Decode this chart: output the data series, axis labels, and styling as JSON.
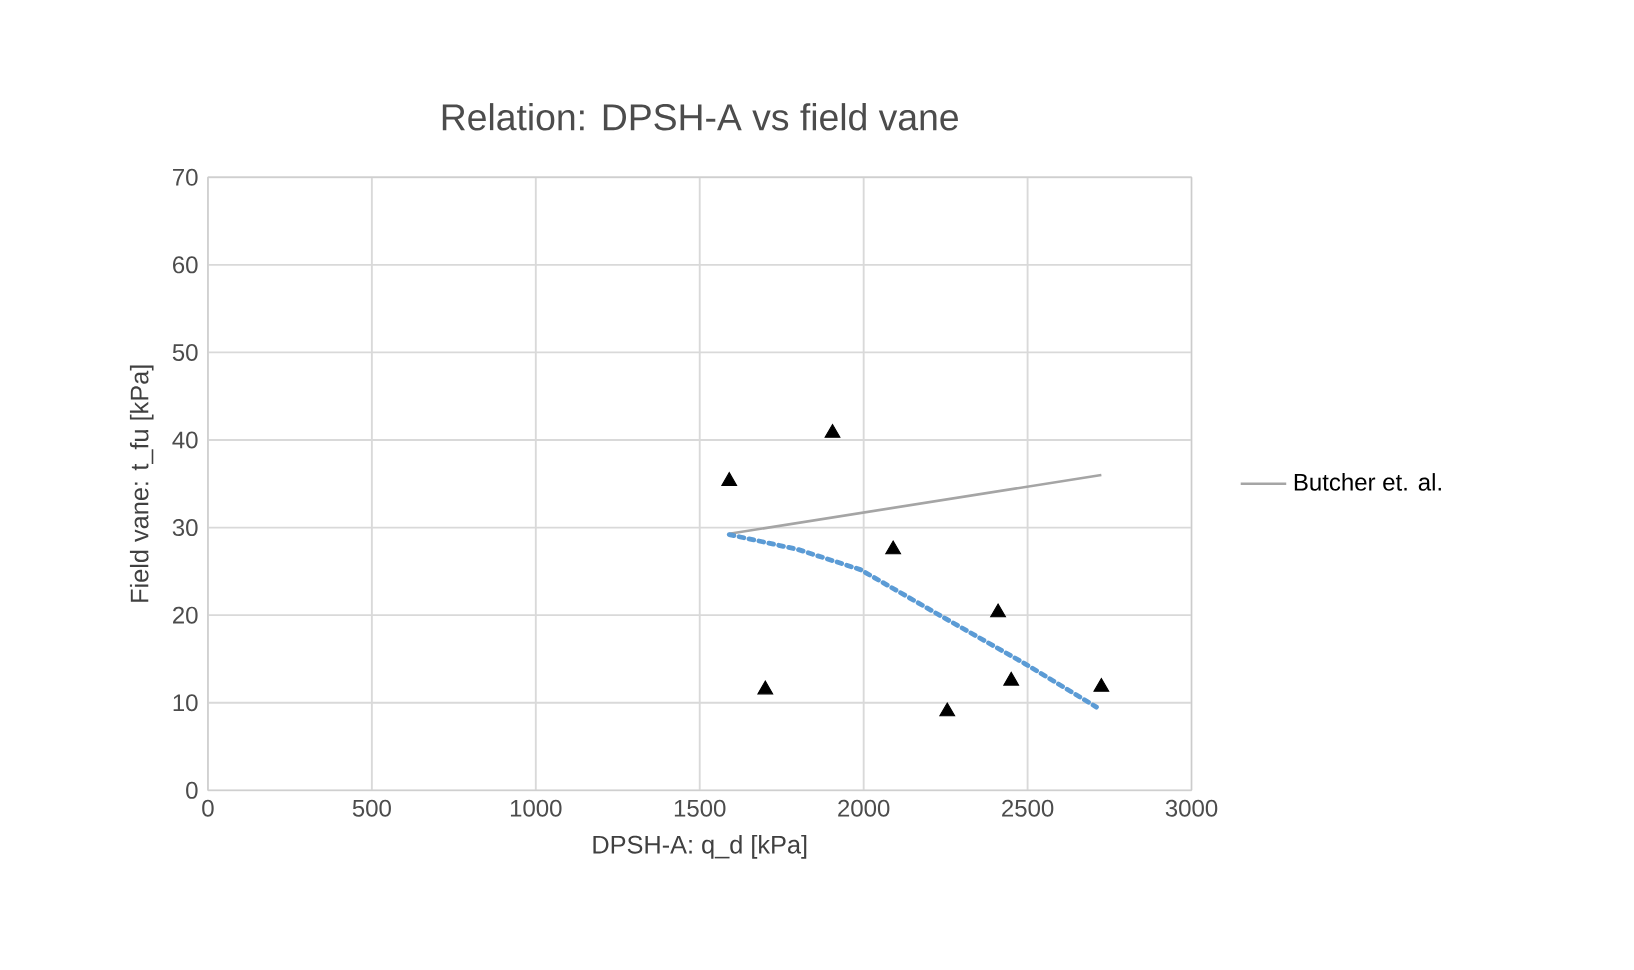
{
  "chart_data": {
    "type": "scatter",
    "title": "Relation: DPSH-A vs field vane",
    "xlabel": "DPSH-A: q_d [kPa]",
    "ylabel": "Field vane: t_fu [kPa]",
    "xlim": [
      0,
      3000
    ],
    "ylim": [
      0,
      70
    ],
    "xticks": [
      0,
      500,
      1000,
      1500,
      2000,
      2500,
      3000
    ],
    "yticks": [
      0,
      10,
      20,
      30,
      40,
      50,
      60,
      70
    ],
    "grid": true,
    "legend": "right",
    "series": [
      {
        "color": "#000000",
        "marker": "triangle",
        "x": [
          1590,
          1700,
          1905,
          2090,
          2255,
          2410,
          2450,
          2725
        ],
        "values": [
          35.3,
          11.5,
          40.8,
          27.5,
          9,
          20.3,
          12.5,
          11.8
        ]
      },
      {
        "type": "line",
        "name": "Butcher et. al.",
        "color": "#a5a5a5",
        "line_style": "solid",
        "x": [
          1590,
          2725
        ],
        "values": [
          29.3,
          36
        ]
      },
      {
        "type": "line",
        "color": "#5b9bd5",
        "line_style": "dotted",
        "x": [
          1590,
          1800,
          1990,
          2250,
          2490,
          2710
        ],
        "values": [
          29.2,
          27.5,
          25.2,
          19.6,
          14.5,
          9.5
        ]
      }
    ]
  }
}
